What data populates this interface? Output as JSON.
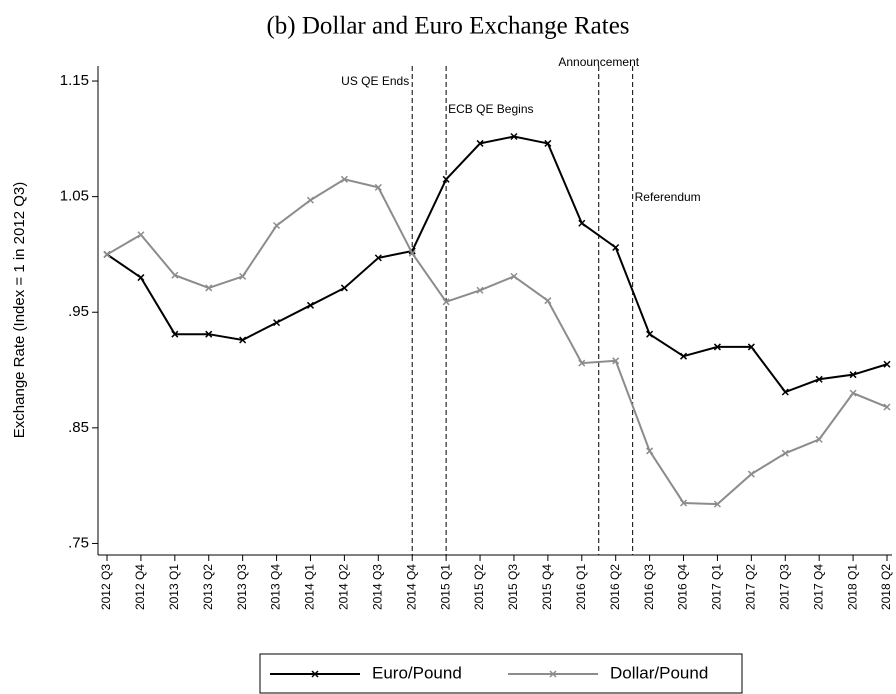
{
  "chart_data": {
    "type": "line",
    "title": "(b) Dollar and Euro Exchange Rates",
    "y_label": "Exchange Rate (Index = 1 in 2012 Q3)",
    "categories": [
      "2012 Q3",
      "2012 Q4",
      "2013 Q1",
      "2013 Q2",
      "2013 Q3",
      "2013 Q4",
      "2014 Q1",
      "2014 Q2",
      "2014 Q3",
      "2014 Q4",
      "2015 Q1",
      "2015 Q2",
      "2015 Q3",
      "2015 Q4",
      "2016 Q1",
      "2016 Q2",
      "2016 Q3",
      "2016 Q4",
      "2017 Q1",
      "2017 Q2",
      "2017 Q3",
      "2017 Q4",
      "2018 Q1",
      "2018 Q2"
    ],
    "series": [
      {
        "name": "Euro/Pound",
        "color": "#000000",
        "values": [
          1.0,
          0.98,
          0.931,
          0.931,
          0.926,
          0.941,
          0.956,
          0.971,
          0.997,
          1.003,
          1.065,
          1.096,
          1.102,
          1.096,
          1.027,
          1.006,
          0.931,
          0.912,
          0.92,
          0.92,
          0.881,
          0.892,
          0.896,
          0.905
        ]
      },
      {
        "name": "Dollar/Pound",
        "color": "#8c8c8c",
        "values": [
          1.0,
          1.017,
          0.982,
          0.971,
          0.981,
          1.025,
          1.047,
          1.065,
          1.058,
          1.001,
          0.959,
          0.969,
          0.981,
          0.96,
          0.906,
          0.908,
          0.83,
          0.785,
          0.784,
          0.81,
          0.828,
          0.84,
          0.88,
          0.868
        ]
      }
    ],
    "events": [
      {
        "label": "US QE Ends",
        "x": 9
      },
      {
        "label": "ECB QE Begins",
        "x": 10
      },
      {
        "label": "Announcement",
        "x": 14.5
      },
      {
        "label": "Referendum",
        "x": 15.5
      }
    ],
    "ylim": [
      0.74,
      1.163
    ],
    "yticks": [
      {
        "value": 0.75,
        "label": ".75"
      },
      {
        "value": 0.85,
        "label": ".85"
      },
      {
        "value": 0.95,
        "label": ".95"
      },
      1.05,
      1.15
    ],
    "legend": "bottom"
  }
}
